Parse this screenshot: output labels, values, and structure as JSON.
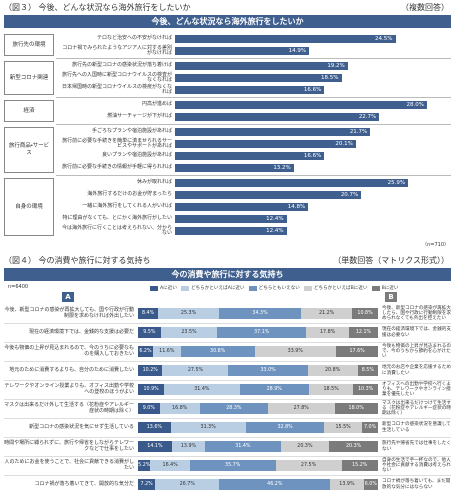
{
  "chart_data": [
    {
      "type": "grouped_hbar",
      "figure_label": "（図３） 今後、どんな状況なら海外旅行をしたいか",
      "note": "（複数回答）",
      "title": "今後、どんな状況なら海外旅行をしたいか",
      "sample_size": "（n=710）",
      "color": "#3f5f8f",
      "xlim": [
        0,
        30
      ],
      "groups": [
        {
          "name": "旅行先の環境",
          "categories": [
            "テロなど治安への不安がなければ",
            "コロナ禍でみられたようなアジア人に対する差別がなければ"
          ],
          "values": [
            24.5,
            14.9
          ],
          "value_labels": [
            "24.5%",
            "14.9%"
          ]
        },
        {
          "name": "新型コロナ関連",
          "categories": [
            "旅行先の新型コロナの感染状況が落ち着けば",
            "旅行先への入国時に新型コロナウイルスの検査がなくなれば",
            "日本帰国時の新型コロナウイルスの検疫がなくなれば"
          ],
          "values": [
            19.2,
            18.5,
            16.6
          ],
          "value_labels": [
            "19.2%",
            "18.5%",
            "16.6%"
          ]
        },
        {
          "name": "経済",
          "categories": [
            "円高が進めば",
            "燃油サーチャージが下がれば"
          ],
          "values": [
            28.0,
            22.7
          ],
          "value_labels": [
            "28.0%",
            "22.7%"
          ]
        },
        {
          "name": "旅行商品・サービス",
          "categories": [
            "手ごろなプランや宿泊施設があれば",
            "旅行前に必要な手続きを簡単に済ませられるサービスやサポートがあれば",
            "良いプランや宿泊施設があれば",
            "旅行前に必要な手続きの情報が手軽に得られれば"
          ],
          "values": [
            21.7,
            20.1,
            16.6,
            13.2
          ],
          "value_labels": [
            "21.7%",
            "20.1%",
            "16.6%",
            "13.2%"
          ]
        },
        {
          "name": "自身の環境",
          "categories": [
            "休みが取れれば",
            "海外旅行するだけのお金が貯まったら",
            "一緒に海外旅行をしてくれる人がいれば",
            "特に理由がなくても、とにかく海外旅行がしたい",
            "今は海外旅行に行くことは考えられない、分からない"
          ],
          "values": [
            25.9,
            20.7,
            14.8,
            12.4,
            12.4
          ],
          "value_labels": [
            "25.9%",
            "20.7%",
            "14.8%",
            "12.4%",
            "12.4%"
          ]
        }
      ]
    },
    {
      "type": "stacked_hbar",
      "figure_label": "（図４） 今の消費や旅行に対する気持ち",
      "note": "（単数回答（マトリクス形式））",
      "title": "今の消費や旅行に対する気持ち",
      "sample_size": "n=6400",
      "a_label": "A",
      "b_label": "B",
      "xlim": [
        0,
        100
      ],
      "categories": [
        "今後、新型コロナの感染が再拡大しても、国や行政が行動制限を求めなければ外出したい",
        "現在の経済環境下では、金銭的な支援は必要だ",
        "今後も物価の上昇が見込まれるので、今のうちに必要なものを購入しておきたい",
        "地元のために消費するよりも、自分のために消費したい",
        "テレワークやオンライン授業よりも、オフィス出勤や学校への登校のほうがよい",
        "マスクは出来るだけ外して生活する（花粉症やアレルギー症状の時期は除く）",
        "新型コロナの感染状況を気にせず生活している",
        "時間や場所に縛られずに、旅行や帰省をしながらテレワークなどで仕事をしたい",
        "人のためにお金を使うことで、社会に貢献できる消費がしたい",
        "コロナ禍が落ち着いてきて、開放的な気分だ"
      ],
      "b_statements": [
        "今後、新型コロナの感染が再拡大したら、国や行政に行動制限を求められなくても外出を控えたい",
        "現在の経済環境下では、金銭的支援は必要ない",
        "今後も物価の上昇が見込まれるので、今のうちから節約を心がけたい",
        "地元のお店や企業を応援するために消費したい",
        "オフィスへの出勤や学校へ行くよりも、テレワークやオンライン授業を優先したい",
        "マスクは出来るだけつけて生活する（花粉症やアレルギー症状の時期は除く）",
        "新型コロナの感染状況を意識して生活している",
        "旅行先や帰省先では仕事をしたくない",
        "自身の生活で手一杯なので、他人や社会に貢献する消費は考えられない",
        "コロナ禍が落ち着いても、まだ開放的な気分にはならない"
      ],
      "series": [
        {
          "name": "Aに近い",
          "color": "#3a5a8c",
          "values": [
            8.4,
            9.5,
            6.2,
            10.2,
            10.9,
            9.0,
            13.6,
            14.1,
            5.2,
            7.2
          ],
          "value_labels": [
            "8.4%",
            "9.5%",
            "6.2%",
            "10.2%",
            "10.9%",
            "9.0%",
            "13.6%",
            "14.1%",
            "5.2%",
            "7.2%"
          ]
        },
        {
          "name": "どちらかといえばAに近い",
          "color": "#b9cde3",
          "values": [
            25.3,
            23.5,
            11.6,
            27.5,
            31.4,
            16.8,
            31.3,
            13.9,
            16.4,
            26.7
          ],
          "value_labels": [
            "25.3%",
            "23.5%",
            "11.6%",
            "27.5%",
            "31.4%",
            "16.8%",
            "31.3%",
            "13.9%",
            "16.4%",
            "26.7%"
          ]
        },
        {
          "name": "どちらともいえない",
          "color": "#6f93bf",
          "values": [
            34.3,
            37.1,
            30.8,
            33.0,
            28.9,
            28.3,
            32.8,
            31.4,
            35.7,
            46.2
          ],
          "value_labels": [
            "34.3%",
            "37.1%",
            "30.8%",
            "33.0%",
            "28.9%",
            "28.3%",
            "32.8%",
            "31.4%",
            "35.7%",
            "46.2%"
          ]
        },
        {
          "name": "どちらかといえばBに近い",
          "color": "#cfcfcf",
          "values": [
            21.2,
            17.8,
            33.9,
            20.8,
            18.5,
            27.8,
            15.5,
            20.3,
            27.5,
            13.9
          ],
          "value_labels": [
            "21.2%",
            "17.8%",
            "33.9%",
            "20.8%",
            "18.5%",
            "27.8%",
            "15.5%",
            "20.3%",
            "27.5%",
            "13.9%"
          ]
        },
        {
          "name": "Bに近い",
          "color": "#7b7b7b",
          "values": [
            10.8,
            12.1,
            17.6,
            8.5,
            10.3,
            18.0,
            7.0,
            20.3,
            15.2,
            6.0
          ],
          "value_labels": [
            "10.8%",
            "12.1%",
            "17.6%",
            "8.5%",
            "10.3%",
            "18.0%",
            "7.0%",
            "20.3%",
            "15.2%",
            "6.0%"
          ]
        }
      ]
    }
  ]
}
